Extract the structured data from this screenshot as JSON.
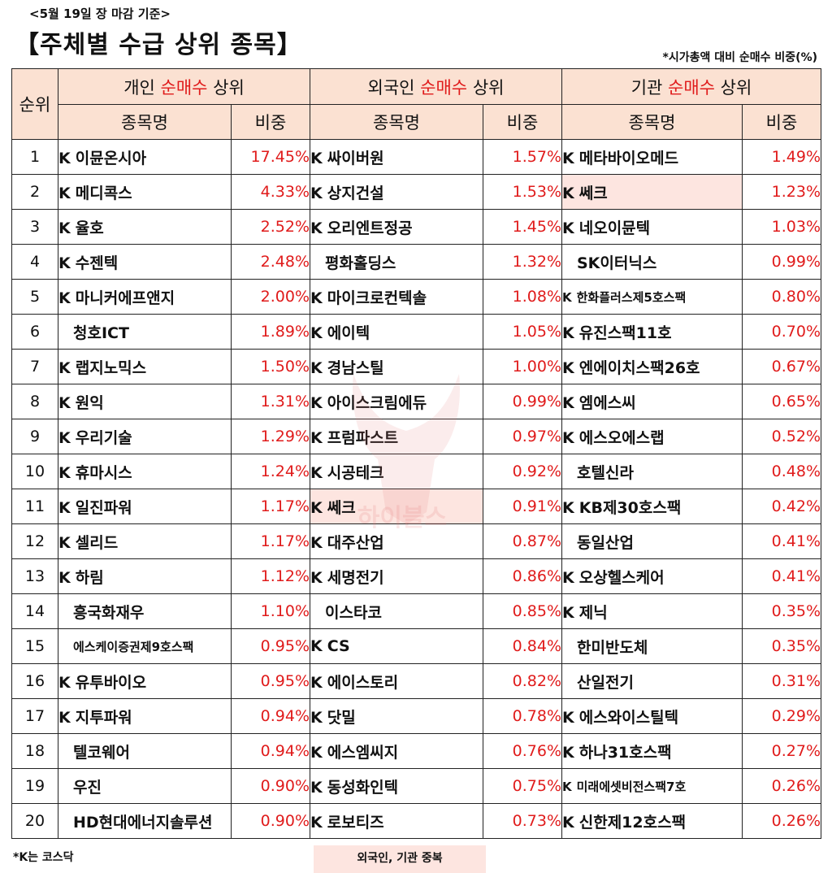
{
  "header": {
    "date": "<5월 19일 장 마감 기준>",
    "title": "【주체별 수급 상위 종목】",
    "note": "*시가총액 대비 순매수 비중(%)"
  },
  "columns": {
    "rank": "순위",
    "groups": [
      {
        "pre": "개인 ",
        "hl": "순매수",
        "post": " 상위"
      },
      {
        "pre": "외국인 ",
        "hl": "순매수",
        "post": " 상위"
      },
      {
        "pre": "기관 ",
        "hl": "순매수",
        "post": " 상위"
      }
    ],
    "name": "종목명",
    "weight": "비중"
  },
  "colors": {
    "header_bg": "#fbe1d2",
    "highlight": "#e01b1b",
    "duplicate_bg": "#fde5e0"
  },
  "rows": [
    {
      "rank": "1",
      "ind": {
        "k": "K",
        "name": "이뮨온시아",
        "pct": "17.45%"
      },
      "frn": {
        "k": "K",
        "name": "싸이버원",
        "pct": "1.57%"
      },
      "ins": {
        "k": "K",
        "name": "메타바이오메드",
        "pct": "1.49%"
      }
    },
    {
      "rank": "2",
      "ind": {
        "k": "K",
        "name": "메디콕스",
        "pct": "4.33%"
      },
      "frn": {
        "k": "K",
        "name": "상지건설",
        "pct": "1.53%"
      },
      "ins": {
        "k": "K",
        "name": "쎄크",
        "pct": "1.23%",
        "dup": true
      }
    },
    {
      "rank": "3",
      "ind": {
        "k": "K",
        "name": "율호",
        "pct": "2.52%"
      },
      "frn": {
        "k": "K",
        "name": "오리엔트정공",
        "pct": "1.45%"
      },
      "ins": {
        "k": "K",
        "name": "네오이뮨텍",
        "pct": "1.03%"
      }
    },
    {
      "rank": "4",
      "ind": {
        "k": "K",
        "name": "수젠텍",
        "pct": "2.48%"
      },
      "frn": {
        "k": "",
        "name": "평화홀딩스",
        "pct": "1.32%"
      },
      "ins": {
        "k": "",
        "name": "SK이터닉스",
        "pct": "0.99%"
      }
    },
    {
      "rank": "5",
      "ind": {
        "k": "K",
        "name": "마니커에프앤지",
        "pct": "2.00%"
      },
      "frn": {
        "k": "K",
        "name": "마이크로컨텍솔",
        "pct": "1.08%"
      },
      "ins": {
        "k": "K",
        "name": "한화플러스제5호스팩",
        "pct": "0.80%",
        "small": true
      }
    },
    {
      "rank": "6",
      "ind": {
        "k": "",
        "name": "청호ICT",
        "pct": "1.89%"
      },
      "frn": {
        "k": "K",
        "name": "에이텍",
        "pct": "1.05%"
      },
      "ins": {
        "k": "K",
        "name": "유진스팩11호",
        "pct": "0.70%"
      }
    },
    {
      "rank": "7",
      "ind": {
        "k": "K",
        "name": "랩지노믹스",
        "pct": "1.50%"
      },
      "frn": {
        "k": "K",
        "name": "경남스틸",
        "pct": "1.00%"
      },
      "ins": {
        "k": "K",
        "name": "엔에이치스팩26호",
        "pct": "0.67%"
      }
    },
    {
      "rank": "8",
      "ind": {
        "k": "K",
        "name": "원익",
        "pct": "1.31%"
      },
      "frn": {
        "k": "K",
        "name": "아이스크림에듀",
        "pct": "0.99%"
      },
      "ins": {
        "k": "K",
        "name": "엠에스씨",
        "pct": "0.65%"
      }
    },
    {
      "rank": "9",
      "ind": {
        "k": "K",
        "name": "우리기술",
        "pct": "1.29%"
      },
      "frn": {
        "k": "K",
        "name": "프럼파스트",
        "pct": "0.97%"
      },
      "ins": {
        "k": "K",
        "name": "에스오에스랩",
        "pct": "0.52%"
      }
    },
    {
      "rank": "10",
      "ind": {
        "k": "K",
        "name": "휴마시스",
        "pct": "1.24%"
      },
      "frn": {
        "k": "K",
        "name": "시공테크",
        "pct": "0.92%"
      },
      "ins": {
        "k": "",
        "name": "호텔신라",
        "pct": "0.48%"
      }
    },
    {
      "rank": "11",
      "ind": {
        "k": "K",
        "name": "일진파워",
        "pct": "1.17%"
      },
      "frn": {
        "k": "K",
        "name": "쎄크",
        "pct": "0.91%",
        "dup": true
      },
      "ins": {
        "k": "K",
        "name": "KB제30호스팩",
        "pct": "0.42%"
      }
    },
    {
      "rank": "12",
      "ind": {
        "k": "K",
        "name": "셀리드",
        "pct": "1.17%"
      },
      "frn": {
        "k": "K",
        "name": "대주산업",
        "pct": "0.87%"
      },
      "ins": {
        "k": "",
        "name": "동일산업",
        "pct": "0.41%"
      }
    },
    {
      "rank": "13",
      "ind": {
        "k": "K",
        "name": "하림",
        "pct": "1.12%"
      },
      "frn": {
        "k": "K",
        "name": "세명전기",
        "pct": "0.86%"
      },
      "ins": {
        "k": "K",
        "name": "오상헬스케어",
        "pct": "0.41%"
      }
    },
    {
      "rank": "14",
      "ind": {
        "k": "",
        "name": "흥국화재우",
        "pct": "1.10%"
      },
      "frn": {
        "k": "",
        "name": "이스타코",
        "pct": "0.85%"
      },
      "ins": {
        "k": "K",
        "name": "제닉",
        "pct": "0.35%"
      }
    },
    {
      "rank": "15",
      "ind": {
        "k": "",
        "name": "에스케이증권제9호스팩",
        "pct": "0.95%",
        "small": true
      },
      "frn": {
        "k": "K",
        "name": "CS",
        "pct": "0.84%"
      },
      "ins": {
        "k": "",
        "name": "한미반도체",
        "pct": "0.35%"
      }
    },
    {
      "rank": "16",
      "ind": {
        "k": "K",
        "name": "유투바이오",
        "pct": "0.95%"
      },
      "frn": {
        "k": "K",
        "name": "에이스토리",
        "pct": "0.82%"
      },
      "ins": {
        "k": "",
        "name": "산일전기",
        "pct": "0.31%"
      }
    },
    {
      "rank": "17",
      "ind": {
        "k": "K",
        "name": "지투파워",
        "pct": "0.94%"
      },
      "frn": {
        "k": "K",
        "name": "닷밀",
        "pct": "0.78%"
      },
      "ins": {
        "k": "K",
        "name": "에스와이스틸텍",
        "pct": "0.29%"
      }
    },
    {
      "rank": "18",
      "ind": {
        "k": "",
        "name": "텔코웨어",
        "pct": "0.94%"
      },
      "frn": {
        "k": "K",
        "name": "에스엠씨지",
        "pct": "0.76%"
      },
      "ins": {
        "k": "K",
        "name": "하나31호스팩",
        "pct": "0.27%"
      }
    },
    {
      "rank": "19",
      "ind": {
        "k": "",
        "name": "우진",
        "pct": "0.90%"
      },
      "frn": {
        "k": "K",
        "name": "동성화인텍",
        "pct": "0.75%"
      },
      "ins": {
        "k": "K",
        "name": "미래에셋비전스팩7호",
        "pct": "0.26%",
        "small": true
      }
    },
    {
      "rank": "20",
      "ind": {
        "k": "",
        "name": "HD현대에너지솔루션",
        "pct": "0.90%"
      },
      "frn": {
        "k": "K",
        "name": "로보티즈",
        "pct": "0.73%"
      },
      "ins": {
        "k": "K",
        "name": "신한제12호스팩",
        "pct": "0.26%"
      }
    }
  ],
  "watermark": {
    "text": "하이블스"
  },
  "footer": {
    "footnote": "*K는 코스닥",
    "legend": "외국인, 기관 중복"
  }
}
